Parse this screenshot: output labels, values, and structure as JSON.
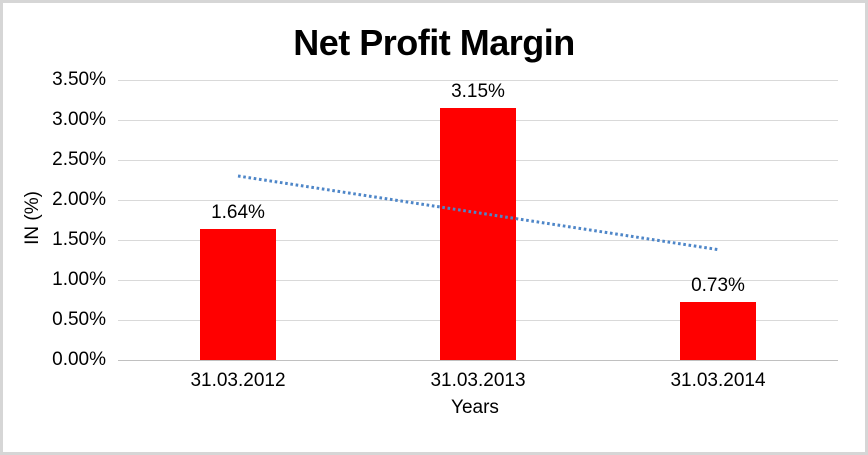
{
  "chart_data": {
    "type": "bar",
    "title": "Net Profit Margin",
    "xlabel": "Years",
    "ylabel": "IN (%)",
    "categories": [
      "31.03.2012",
      "31.03.2013",
      "31.03.2014"
    ],
    "values": [
      1.64,
      3.15,
      0.73
    ],
    "data_labels": [
      "1.64%",
      "3.15%",
      "0.73%"
    ],
    "ylim": [
      0,
      3.5
    ],
    "yticks": [
      {
        "value": 0.0,
        "label": "0.00%"
      },
      {
        "value": 0.5,
        "label": "0.50%"
      },
      {
        "value": 1.0,
        "label": "1.00%"
      },
      {
        "value": 1.5,
        "label": "1.50%"
      },
      {
        "value": 2.0,
        "label": "2.00%"
      },
      {
        "value": 2.5,
        "label": "2.50%"
      },
      {
        "value": 3.0,
        "label": "3.00%"
      },
      {
        "value": 3.5,
        "label": "3.50%"
      }
    ],
    "grid": true,
    "legend": "none",
    "bar_color": "#ff0000",
    "trendline": {
      "type": "linear",
      "style": "dotted",
      "color": "#4e86c8",
      "start_value": 2.3,
      "end_value": 1.38
    },
    "gridline_color": "#d9d9d9",
    "baseline_color": "#c0c0c0",
    "text_color": "#000000",
    "background_color": "#ffffff",
    "border_color": "#d6d6d6"
  }
}
